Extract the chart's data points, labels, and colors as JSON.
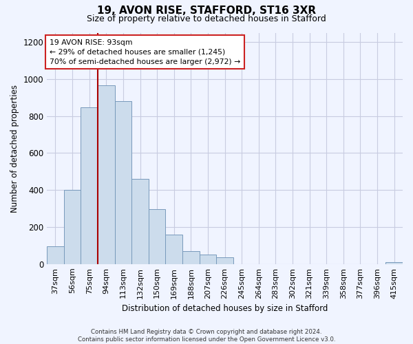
{
  "title": "19, AVON RISE, STAFFORD, ST16 3XR",
  "subtitle": "Size of property relative to detached houses in Stafford",
  "xlabel": "Distribution of detached houses by size in Stafford",
  "ylabel": "Number of detached properties",
  "bar_labels": [
    "37sqm",
    "56sqm",
    "75sqm",
    "94sqm",
    "113sqm",
    "132sqm",
    "150sqm",
    "169sqm",
    "188sqm",
    "207sqm",
    "226sqm",
    "245sqm",
    "264sqm",
    "283sqm",
    "302sqm",
    "321sqm",
    "339sqm",
    "358sqm",
    "377sqm",
    "396sqm",
    "415sqm"
  ],
  "bar_values": [
    95,
    400,
    845,
    965,
    880,
    460,
    295,
    160,
    70,
    50,
    35,
    0,
    0,
    0,
    0,
    0,
    0,
    0,
    0,
    0,
    10
  ],
  "bar_color": "#ccdcec",
  "bar_edge_color": "#7799bb",
  "ylim": [
    0,
    1250
  ],
  "yticks": [
    0,
    200,
    400,
    600,
    800,
    1000,
    1200
  ],
  "vline_x_idx": 3,
  "vline_color": "#aa0000",
  "annotation_title": "19 AVON RISE: 93sqm",
  "annotation_line1": "← 29% of detached houses are smaller (1,245)",
  "annotation_line2": "70% of semi-detached houses are larger (2,972) →",
  "annotation_box_color": "#ffffff",
  "annotation_border_color": "#cc2222",
  "footer_line1": "Contains HM Land Registry data © Crown copyright and database right 2024.",
  "footer_line2": "Contains public sector information licensed under the Open Government Licence v3.0.",
  "background_color": "#f0f4ff",
  "grid_color": "#c8cce0"
}
